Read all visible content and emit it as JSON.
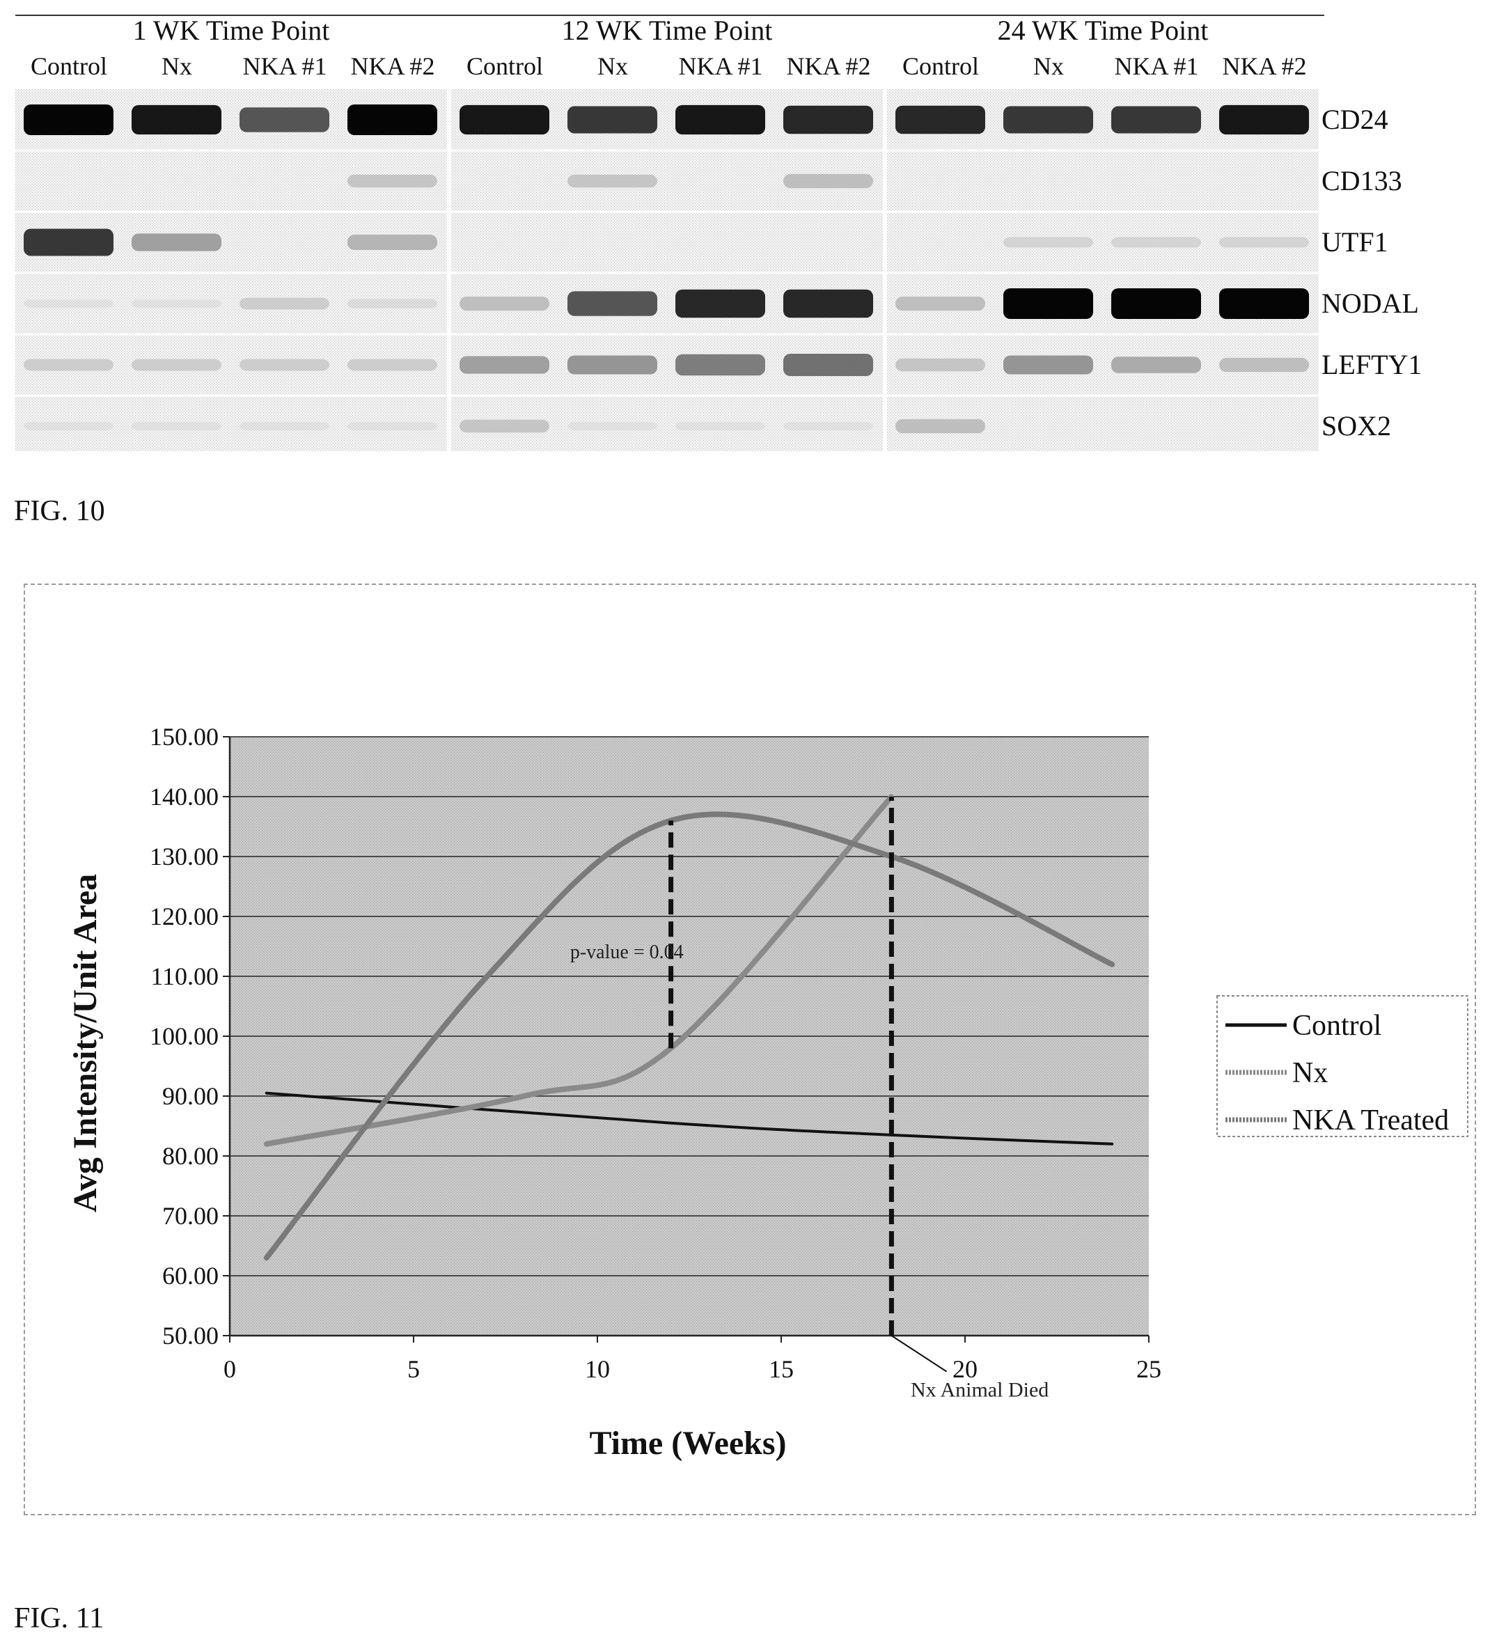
{
  "fig10": {
    "caption": "FIG. 10",
    "timepoints": [
      {
        "title": "1 WK Time Point",
        "lanes": [
          "Control",
          "Nx",
          "NKA #1",
          "NKA #2"
        ]
      },
      {
        "title": "12 WK Time Point",
        "lanes": [
          "Control",
          "Nx",
          "NKA #1",
          "NKA #2"
        ]
      },
      {
        "title": "24 WK Time Point",
        "lanes": [
          "Control",
          "Nx",
          "NKA #1",
          "NKA #2"
        ]
      }
    ],
    "markers": [
      "CD24",
      "CD133",
      "UTF1",
      "NODAL",
      "LEFTY1",
      "SOX2"
    ],
    "band_intensity": [
      [
        [
          1.0,
          0.95,
          0.75,
          1.0
        ],
        [
          0.95,
          0.85,
          0.95,
          0.9
        ],
        [
          0.9,
          0.85,
          0.85,
          0.95
        ]
      ],
      [
        [
          0.0,
          0.0,
          0.0,
          0.25
        ],
        [
          0.0,
          0.25,
          0.0,
          0.3
        ],
        [
          0.0,
          0.0,
          0.0,
          0.0
        ]
      ],
      [
        [
          0.85,
          0.45,
          0.0,
          0.35
        ],
        [
          0.0,
          0.0,
          0.0,
          0.0
        ],
        [
          0.0,
          0.15,
          0.15,
          0.15
        ]
      ],
      [
        [
          0.05,
          0.05,
          0.2,
          0.1
        ],
        [
          0.3,
          0.75,
          0.9,
          0.9
        ],
        [
          0.3,
          1.0,
          1.0,
          1.0
        ]
      ],
      [
        [
          0.2,
          0.2,
          0.2,
          0.2
        ],
        [
          0.45,
          0.5,
          0.6,
          0.65
        ],
        [
          0.25,
          0.5,
          0.4,
          0.3
        ]
      ],
      [
        [
          0.05,
          0.05,
          0.05,
          0.05
        ],
        [
          0.25,
          0.05,
          0.05,
          0.05
        ],
        [
          0.3,
          0.0,
          0.0,
          0.0
        ]
      ]
    ]
  },
  "fig11": {
    "caption": "FIG. 11",
    "chart_data": {
      "type": "line",
      "xlabel": "Time (Weeks)",
      "ylabel": "Avg Intensity/Unit Area",
      "xlim": [
        0,
        25
      ],
      "ylim": [
        50,
        150
      ],
      "xticks": [
        "0",
        "5",
        "10",
        "15",
        "20",
        "25"
      ],
      "yticks": [
        "50.00",
        "60.00",
        "70.00",
        "80.00",
        "90.00",
        "100.00",
        "110.00",
        "120.00",
        "130.00",
        "140.00",
        "150.00"
      ],
      "grid": true,
      "legend_position": "right",
      "series": [
        {
          "name": "Control",
          "color": "#111111",
          "x": [
            1,
            12,
            18,
            24
          ],
          "y": [
            90.5,
            85.5,
            83.5,
            82
          ]
        },
        {
          "name": "Nx",
          "color": "#8a8a8a",
          "x": [
            1,
            8,
            12,
            18
          ],
          "y": [
            82,
            90,
            98,
            140
          ]
        },
        {
          "name": "NKA Treated",
          "color": "#7a7a7a",
          "x": [
            1,
            7,
            12,
            18,
            24
          ],
          "y": [
            63,
            110,
            136,
            130,
            112
          ]
        }
      ],
      "vlines": [
        {
          "x": 12,
          "y_from": 98,
          "y_to": 136
        },
        {
          "x": 18,
          "y_from": 50,
          "y_to": 140
        }
      ],
      "annotations": [
        {
          "text": "p-value = 0.04",
          "x": 10.8,
          "y": 113
        },
        {
          "text": "Nx Animal Died",
          "x": 20.4,
          "y": 41
        }
      ]
    }
  }
}
